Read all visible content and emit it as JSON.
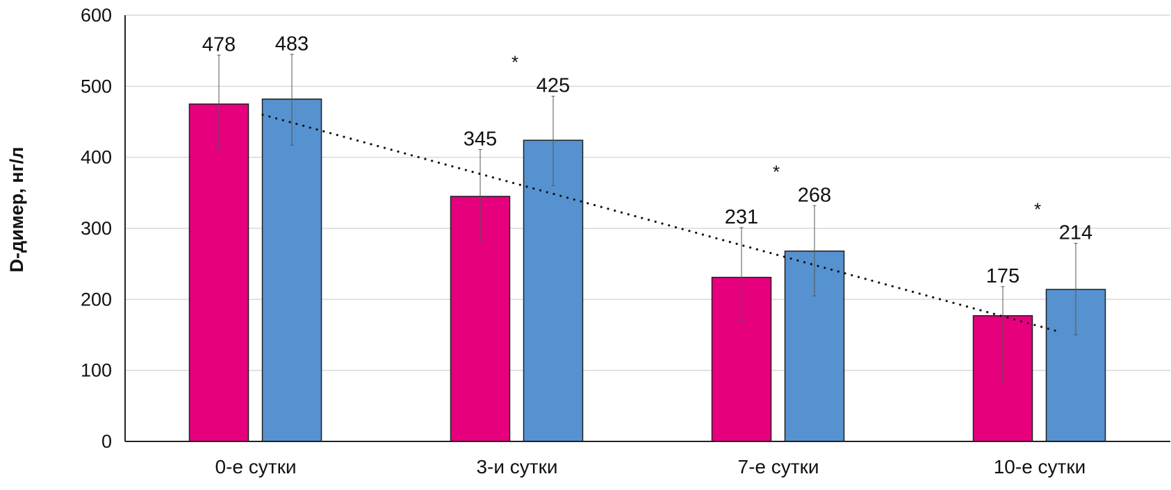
{
  "chart_data": {
    "type": "bar",
    "title": "",
    "xlabel": "",
    "ylabel": "D-димер, нг/л",
    "ylim": [
      0,
      600
    ],
    "yticks": [
      0,
      100,
      200,
      300,
      400,
      500,
      600
    ],
    "grid": true,
    "legend": "none",
    "categories": [
      "0-е сутки",
      "3-и сутки",
      "7-е сутки",
      "10-е сутки"
    ],
    "series": [
      {
        "color": "#e6007e",
        "values": [
          478,
          345,
          231,
          175
        ],
        "bar_heights": [
          475,
          345,
          231,
          177
        ],
        "error_low": [
          412,
          281,
          170,
          84
        ],
        "error_high": [
          544,
          411,
          301,
          218
        ],
        "labels": [
          "478",
          "345",
          "231",
          "175"
        ]
      },
      {
        "color": "#5692cf",
        "values": [
          483,
          425,
          268,
          214
        ],
        "bar_heights": [
          482,
          424,
          268,
          214
        ],
        "error_low": [
          417,
          360,
          205,
          150
        ],
        "error_high": [
          545,
          486,
          332,
          279
        ],
        "labels": [
          "483",
          "425",
          "268",
          "214"
        ]
      }
    ],
    "significance_marks": [
      "",
      "*",
      "*",
      "*"
    ],
    "trendline": {
      "style": "dotted",
      "series": 0,
      "start_value": 460,
      "end_value": 154
    }
  }
}
